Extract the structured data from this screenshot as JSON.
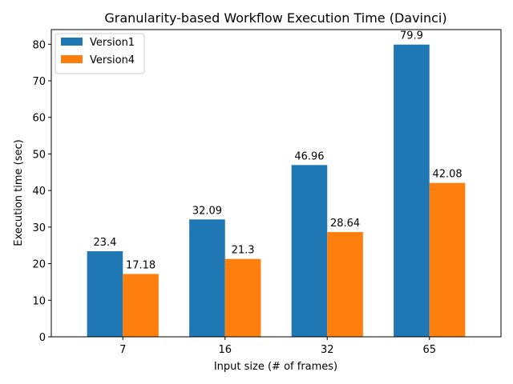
{
  "chart_data": {
    "type": "bar",
    "title": "Granularity-based Workflow Execution Time (Davinci)",
    "xlabel": "Input size (# of frames)",
    "ylabel": "Execution time (sec)",
    "categories": [
      "7",
      "16",
      "32",
      "65"
    ],
    "series": [
      {
        "name": "Version1",
        "values": [
          23.4,
          32.09,
          46.96,
          79.9
        ],
        "labels": [
          "23.4",
          "32.09",
          "46.96",
          "79.9"
        ],
        "color": "#1f77b4"
      },
      {
        "name": "Version4",
        "values": [
          17.18,
          21.3,
          28.64,
          42.08
        ],
        "labels": [
          "17.18",
          "21.3",
          "28.64",
          "42.08"
        ],
        "color": "#ff7f0e"
      }
    ],
    "ylim": [
      0,
      84
    ],
    "yticks": [
      0,
      10,
      20,
      30,
      40,
      50,
      60,
      70,
      80
    ],
    "legend": "top-left",
    "grid": false
  }
}
